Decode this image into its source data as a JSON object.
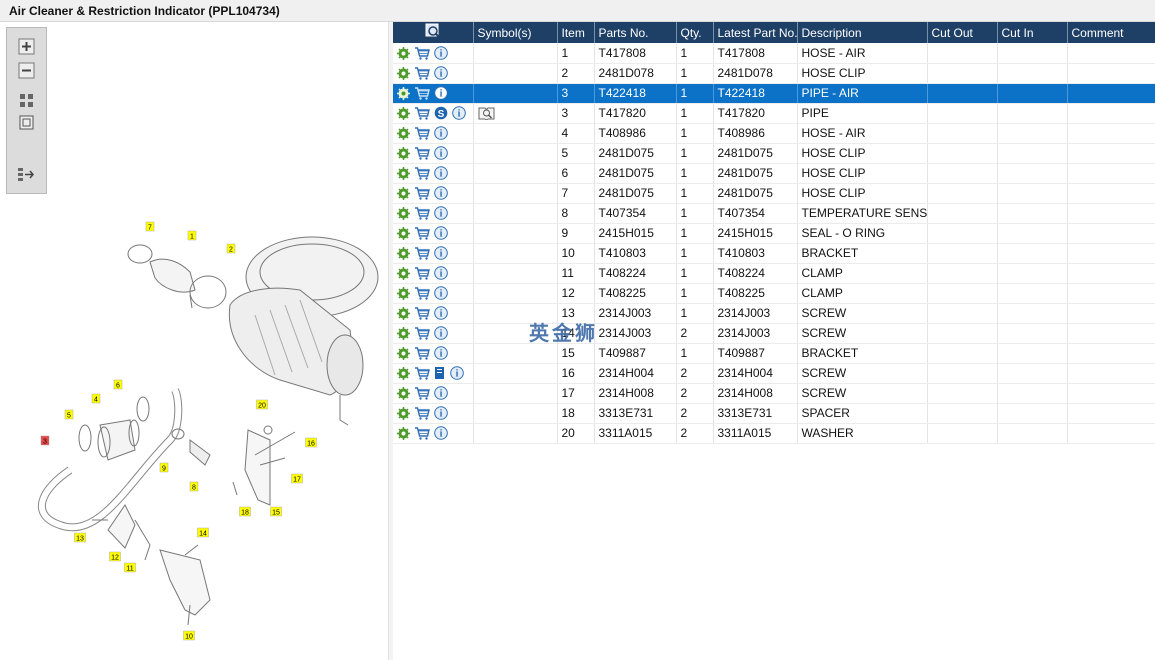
{
  "title": "Air Cleaner & Restriction Indicator (PPL104734)",
  "toolbox": [
    {
      "name": "zoom-in-icon"
    },
    {
      "name": "zoom-out-icon"
    },
    {
      "name": "fit-all-icon"
    },
    {
      "name": "fit-window-icon"
    },
    {
      "name": "list-toggle-icon"
    }
  ],
  "table": {
    "headers": [
      "",
      "Symbol(s)",
      "Item",
      "Parts No.",
      "Qty.",
      "Latest Part No.",
      "Description",
      "Cut Out",
      "Cut In",
      "Comment"
    ],
    "rows": [
      {
        "item": "1",
        "part": "T417808",
        "qty": "1",
        "latest": "T417808",
        "desc": "HOSE - AIR",
        "icon": "info"
      },
      {
        "item": "2",
        "part": "2481D078",
        "qty": "1",
        "latest": "2481D078",
        "desc": "HOSE CLIP",
        "icon": "info"
      },
      {
        "item": "3",
        "part": "T422418",
        "qty": "1",
        "latest": "T422418",
        "desc": "PIPE - AIR",
        "icon": "info",
        "selected": true
      },
      {
        "item": "3",
        "part": "T417820",
        "qty": "1",
        "latest": "T417820",
        "desc": "PIPE",
        "icon": "s",
        "symbol": "book"
      },
      {
        "item": "4",
        "part": "T408986",
        "qty": "1",
        "latest": "T408986",
        "desc": "HOSE - AIR",
        "icon": "info"
      },
      {
        "item": "5",
        "part": "2481D075",
        "qty": "1",
        "latest": "2481D075",
        "desc": "HOSE CLIP",
        "icon": "info"
      },
      {
        "item": "6",
        "part": "2481D075",
        "qty": "1",
        "latest": "2481D075",
        "desc": "HOSE CLIP",
        "icon": "info"
      },
      {
        "item": "7",
        "part": "2481D075",
        "qty": "1",
        "latest": "2481D075",
        "desc": "HOSE CLIP",
        "icon": "info"
      },
      {
        "item": "8",
        "part": "T407354",
        "qty": "1",
        "latest": "T407354",
        "desc": "TEMPERATURE SENSOR",
        "icon": "info"
      },
      {
        "item": "9",
        "part": "2415H015",
        "qty": "1",
        "latest": "2415H015",
        "desc": "SEAL - O RING",
        "icon": "info"
      },
      {
        "item": "10",
        "part": "T410803",
        "qty": "1",
        "latest": "T410803",
        "desc": "BRACKET",
        "icon": "info"
      },
      {
        "item": "11",
        "part": "T408224",
        "qty": "1",
        "latest": "T408224",
        "desc": "CLAMP",
        "icon": "info"
      },
      {
        "item": "12",
        "part": "T408225",
        "qty": "1",
        "latest": "T408225",
        "desc": "CLAMP",
        "icon": "info"
      },
      {
        "item": "13",
        "part": "2314J003",
        "qty": "1",
        "latest": "2314J003",
        "desc": "SCREW",
        "icon": "info"
      },
      {
        "item": "14",
        "part": "2314J003",
        "qty": "2",
        "latest": "2314J003",
        "desc": "SCREW",
        "icon": "info"
      },
      {
        "item": "15",
        "part": "T409887",
        "qty": "1",
        "latest": "T409887",
        "desc": "BRACKET",
        "icon": "info"
      },
      {
        "item": "16",
        "part": "2314H004",
        "qty": "2",
        "latest": "2314H004",
        "desc": "SCREW",
        "icon": "doc"
      },
      {
        "item": "17",
        "part": "2314H008",
        "qty": "2",
        "latest": "2314H008",
        "desc": "SCREW",
        "icon": "info"
      },
      {
        "item": "18",
        "part": "3313E731",
        "qty": "2",
        "latest": "3313E731",
        "desc": "SPACER",
        "icon": "info"
      },
      {
        "item": "20",
        "part": "3311A015",
        "qty": "2",
        "latest": "3311A015",
        "desc": "WASHER",
        "icon": "info"
      }
    ]
  },
  "diagram": {
    "callouts": [
      {
        "label": "7"
      },
      {
        "label": "1"
      },
      {
        "label": "2"
      },
      {
        "label": "6"
      },
      {
        "label": "4"
      },
      {
        "label": "5"
      },
      {
        "label": "3",
        "highlight": true
      },
      {
        "label": "9"
      },
      {
        "label": "8"
      },
      {
        "label": "20"
      },
      {
        "label": "16"
      },
      {
        "label": "17"
      },
      {
        "label": "18"
      },
      {
        "label": "15"
      },
      {
        "label": "13"
      },
      {
        "label": "12"
      },
      {
        "label": "11"
      },
      {
        "label": "14"
      },
      {
        "label": "10"
      }
    ]
  },
  "watermark": "英金狮",
  "colors": {
    "header": "#1e3f66",
    "selected": "#0b72c7",
    "callout": "#ffff00",
    "callout_highlight": "#e84b4b"
  }
}
